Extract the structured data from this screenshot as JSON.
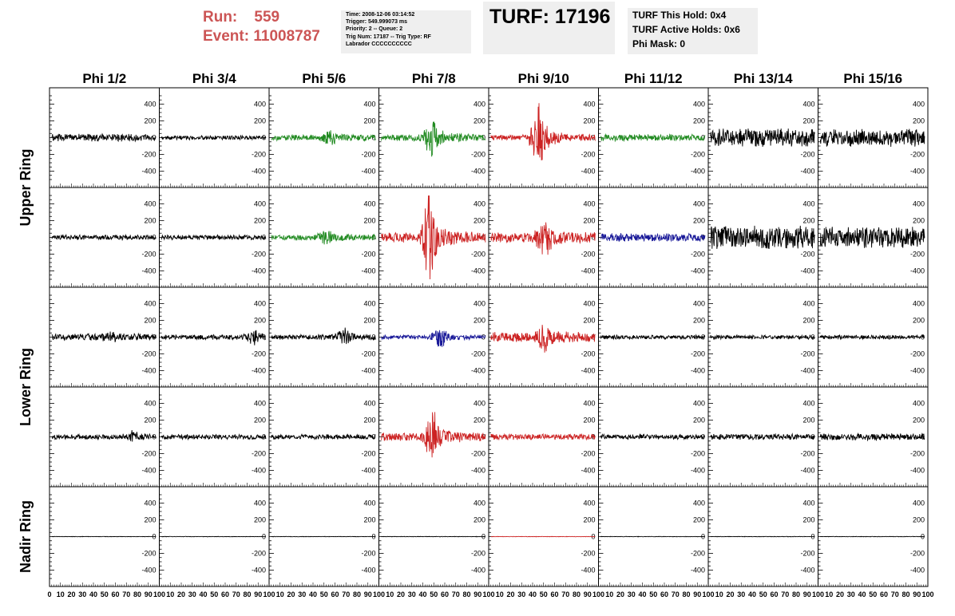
{
  "header": {
    "run_label": "Run:",
    "run_value": "559",
    "event_label": "Event:",
    "event_value": "11008787",
    "info_lines": [
      "Time: 2008-12-06 03:14:52",
      "Trigger: 549.999073 ms",
      "Priority: 2 -- Queue: 2",
      "Trig Num: 17187 -- Trig Type: RF",
      "Labrador CCCCCCCCCC"
    ],
    "turf": "TURF: 17196",
    "hold_lines": [
      "TURF This Hold: 0x4",
      "TURF Active Holds: 0x6",
      "Phi Mask: 0"
    ]
  },
  "colors": {
    "black": "#000000",
    "green": "#228b22",
    "red": "#cc2222",
    "blue": "#1a1a99"
  },
  "chart_data": {
    "type": "line",
    "columns": [
      "Phi 1/2",
      "Phi 3/4",
      "Phi 5/6",
      "Phi 7/8",
      "Phi 9/10",
      "Phi 11/12",
      "Phi 13/14",
      "Phi 15/16"
    ],
    "rows": [
      "Upper Ring",
      "Upper Ring",
      "Lower Ring",
      "Lower Ring",
      "Nadir Ring"
    ],
    "row_labels": [
      {
        "text": "Upper Ring",
        "span": [
          0,
          1
        ]
      },
      {
        "text": "Lower Ring",
        "span": [
          2,
          3
        ]
      },
      {
        "text": "Nadir Ring",
        "span": [
          4,
          4
        ]
      }
    ],
    "xlim": [
      0,
      100
    ],
    "ylim": [
      -500,
      500
    ],
    "y_ticks": [
      -400,
      -200,
      0,
      200,
      400
    ],
    "x_tick_labels": [
      "0",
      "10",
      "20",
      "30",
      "40",
      "50",
      "60",
      "70",
      "80",
      "90",
      "100"
    ],
    "panels": [
      [
        {
          "color": "black",
          "amp": 45,
          "burst": 0,
          "center": 50,
          "noise_seed": 1
        },
        {
          "color": "black",
          "amp": 25,
          "burst": 0,
          "center": 50,
          "noise_seed": 2
        },
        {
          "color": "green",
          "amp": 35,
          "burst": 60,
          "center": 55,
          "noise_seed": 3
        },
        {
          "color": "green",
          "amp": 40,
          "burst": 200,
          "center": 48,
          "noise_seed": 4
        },
        {
          "color": "red",
          "amp": 35,
          "burst": 380,
          "center": 45,
          "noise_seed": 5
        },
        {
          "color": "green",
          "amp": 40,
          "burst": 0,
          "center": 50,
          "noise_seed": 6
        },
        {
          "color": "black",
          "amp": 110,
          "burst": 0,
          "center": 50,
          "noise_seed": 7
        },
        {
          "color": "black",
          "amp": 110,
          "burst": 0,
          "center": 50,
          "noise_seed": 8
        }
      ],
      [
        {
          "color": "black",
          "amp": 30,
          "burst": 0,
          "center": 50,
          "noise_seed": 9
        },
        {
          "color": "black",
          "amp": 30,
          "burst": 0,
          "center": 50,
          "noise_seed": 10
        },
        {
          "color": "green",
          "amp": 35,
          "burst": 70,
          "center": 52,
          "noise_seed": 11
        },
        {
          "color": "red",
          "amp": 60,
          "burst": 420,
          "center": 45,
          "noise_seed": 12
        },
        {
          "color": "red",
          "amp": 60,
          "burst": 180,
          "center": 50,
          "noise_seed": 13
        },
        {
          "color": "blue",
          "amp": 50,
          "burst": 0,
          "center": 50,
          "noise_seed": 14
        },
        {
          "color": "black",
          "amp": 140,
          "burst": 0,
          "center": 50,
          "noise_seed": 15
        },
        {
          "color": "black",
          "amp": 130,
          "burst": 0,
          "center": 50,
          "noise_seed": 16
        }
      ],
      [
        {
          "color": "black",
          "amp": 40,
          "burst": 30,
          "center": 55,
          "noise_seed": 17
        },
        {
          "color": "black",
          "amp": 30,
          "burst": 60,
          "center": 85,
          "noise_seed": 18
        },
        {
          "color": "black",
          "amp": 30,
          "burst": 80,
          "center": 68,
          "noise_seed": 19
        },
        {
          "color": "blue",
          "amp": 25,
          "burst": 90,
          "center": 55,
          "noise_seed": 20
        },
        {
          "color": "red",
          "amp": 60,
          "burst": 100,
          "center": 50,
          "noise_seed": 21
        },
        {
          "color": "black",
          "amp": 25,
          "burst": 0,
          "center": 50,
          "noise_seed": 22
        },
        {
          "color": "black",
          "amp": 25,
          "burst": 0,
          "center": 50,
          "noise_seed": 23
        },
        {
          "color": "black",
          "amp": 25,
          "burst": 0,
          "center": 50,
          "noise_seed": 24
        }
      ],
      [
        {
          "color": "black",
          "amp": 30,
          "burst": 40,
          "center": 75,
          "noise_seed": 25
        },
        {
          "color": "black",
          "amp": 30,
          "burst": 0,
          "center": 50,
          "noise_seed": 26
        },
        {
          "color": "black",
          "amp": 30,
          "burst": 0,
          "center": 50,
          "noise_seed": 27
        },
        {
          "color": "red",
          "amp": 50,
          "burst": 250,
          "center": 48,
          "noise_seed": 28
        },
        {
          "color": "red",
          "amp": 35,
          "burst": 0,
          "center": 50,
          "noise_seed": 29
        },
        {
          "color": "black",
          "amp": 30,
          "burst": 0,
          "center": 50,
          "noise_seed": 30
        },
        {
          "color": "black",
          "amp": 35,
          "burst": 0,
          "center": 50,
          "noise_seed": 31
        },
        {
          "color": "black",
          "amp": 40,
          "burst": 0,
          "center": 50,
          "noise_seed": 32
        }
      ],
      [
        {
          "color": "black",
          "amp": 3,
          "burst": 0,
          "center": 50,
          "noise_seed": 33
        },
        {
          "color": "black",
          "amp": 3,
          "burst": 0,
          "center": 50,
          "noise_seed": 34
        },
        {
          "color": "black",
          "amp": 3,
          "burst": 0,
          "center": 50,
          "noise_seed": 35
        },
        {
          "color": "black",
          "amp": 3,
          "burst": 0,
          "center": 50,
          "noise_seed": 36
        },
        {
          "color": "red",
          "amp": 3,
          "burst": 0,
          "center": 50,
          "noise_seed": 37
        },
        {
          "color": "black",
          "amp": 3,
          "burst": 0,
          "center": 50,
          "noise_seed": 38
        },
        {
          "color": "black",
          "amp": 3,
          "burst": 0,
          "center": 50,
          "noise_seed": 39
        },
        {
          "color": "black",
          "amp": 3,
          "burst": 0,
          "center": 50,
          "noise_seed": 40
        }
      ]
    ]
  }
}
